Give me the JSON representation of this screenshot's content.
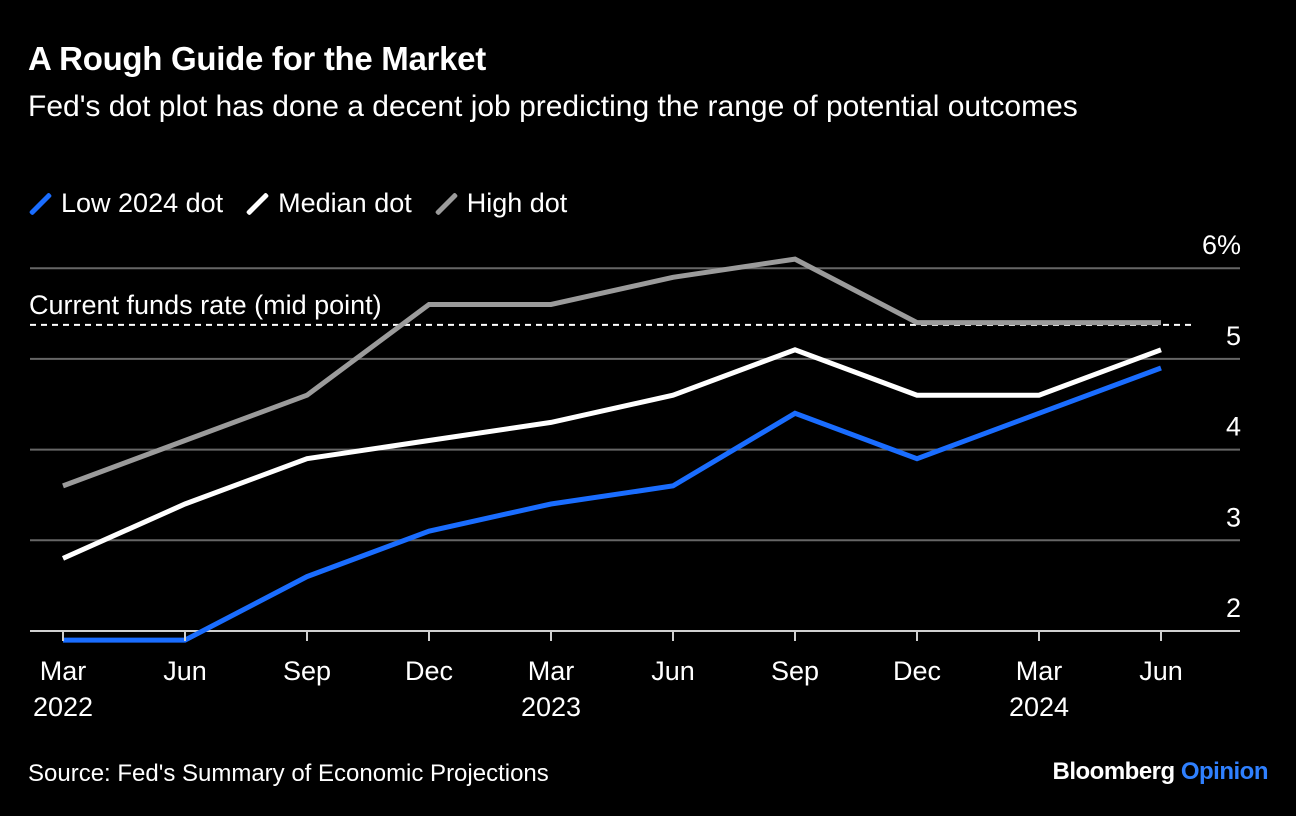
{
  "header": {
    "title": "A Rough Guide for the Market",
    "subtitle": "Fed's dot plot has done a decent job predicting the range of potential outcomes"
  },
  "legend": [
    {
      "label": "Low 2024 dot",
      "color": "#1a6dff"
    },
    {
      "label": "Median dot",
      "color": "#ffffff"
    },
    {
      "label": "High dot",
      "color": "#9b9b9b"
    }
  ],
  "footer": {
    "source": "Source: Fed's Summary of Economic Projections",
    "brand_main": "Bloomberg",
    "brand_accent": "Opinion"
  },
  "chart_data": {
    "type": "line",
    "title": "A Rough Guide for the Market",
    "x": [
      "Mar 2022",
      "Jun 2022",
      "Sep 2022",
      "Dec 2022",
      "Mar 2023",
      "Jun 2023",
      "Sep 2023",
      "Dec 2023",
      "Mar 2024",
      "Jun 2024"
    ],
    "x_tick_labels": [
      {
        "month": "Mar",
        "year": "2022"
      },
      {
        "month": "Jun",
        "year": ""
      },
      {
        "month": "Sep",
        "year": ""
      },
      {
        "month": "Dec",
        "year": ""
      },
      {
        "month": "Mar",
        "year": "2023"
      },
      {
        "month": "Jun",
        "year": ""
      },
      {
        "month": "Sep",
        "year": ""
      },
      {
        "month": "Dec",
        "year": ""
      },
      {
        "month": "Mar",
        "year": "2024"
      },
      {
        "month": "Jun",
        "year": ""
      }
    ],
    "y_ticks": [
      {
        "value": 2,
        "label": "2"
      },
      {
        "value": 3,
        "label": "3"
      },
      {
        "value": 4,
        "label": "4"
      },
      {
        "value": 5,
        "label": "5"
      },
      {
        "value": 6,
        "label": "6%"
      }
    ],
    "ylim": [
      1.9,
      6.0
    ],
    "grid": true,
    "legend_position": "top-left",
    "series": [
      {
        "name": "Low 2024 dot",
        "color": "#1a6dff",
        "values": [
          1.9,
          1.9,
          2.6,
          3.1,
          3.4,
          3.6,
          4.4,
          3.9,
          4.4,
          4.9
        ]
      },
      {
        "name": "Median dot",
        "color": "#ffffff",
        "values": [
          2.8,
          3.4,
          3.9,
          4.1,
          4.3,
          4.6,
          5.1,
          4.6,
          4.6,
          5.1
        ]
      },
      {
        "name": "High dot",
        "color": "#9b9b9b",
        "values": [
          3.6,
          4.1,
          4.6,
          5.6,
          5.6,
          5.9,
          6.1,
          5.4,
          5.4,
          5.4
        ]
      }
    ],
    "reference_line": {
      "label": "Current funds rate (mid point)",
      "value": 5.375
    }
  }
}
